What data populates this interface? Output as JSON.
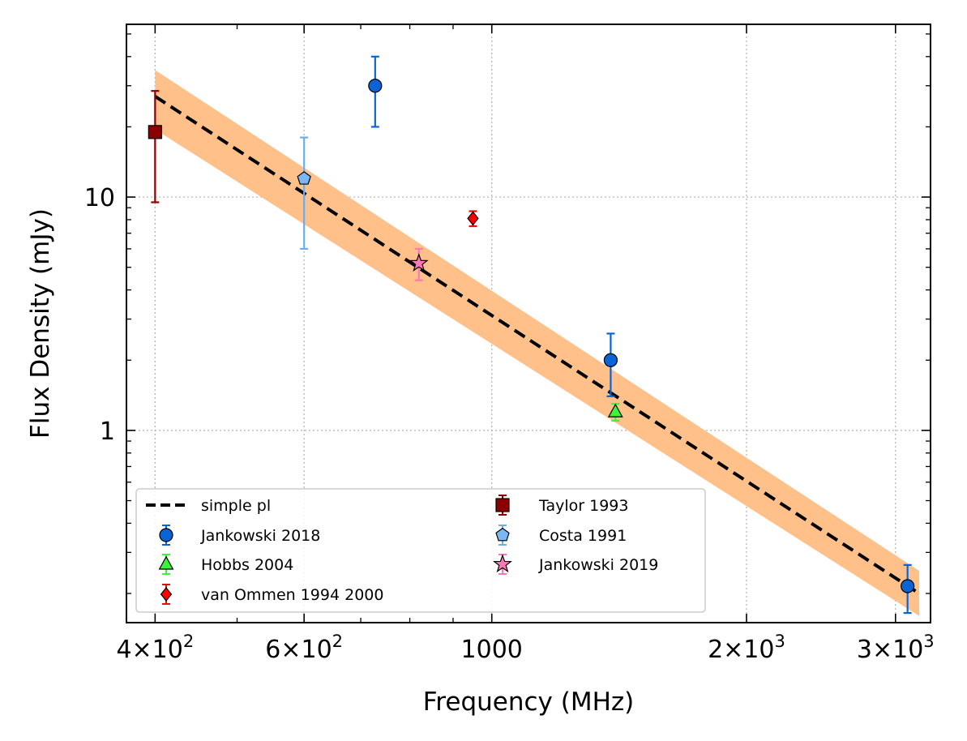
{
  "chart_data": {
    "type": "scatter",
    "title": "",
    "xlabel": "Frequency (MHz)",
    "ylabel": "Flux Density (mJy)",
    "xscale": "log",
    "yscale": "log",
    "xlim": [
      370,
      3300
    ],
    "ylim": [
      0.15,
      55
    ],
    "grid": true,
    "legend_position": "lower-left",
    "x_ticks": [
      {
        "value": 400,
        "base": "4",
        "exp": "2",
        "plain": ""
      },
      {
        "value": 600,
        "base": "6",
        "exp": "2",
        "plain": ""
      },
      {
        "value": 1000,
        "base": "",
        "exp": "",
        "plain": "1000"
      },
      {
        "value": 2000,
        "base": "2",
        "exp": "3",
        "plain": ""
      },
      {
        "value": 3000,
        "base": "3",
        "exp": "3",
        "plain": ""
      }
    ],
    "y_ticks": [
      {
        "value": 1,
        "label": "1"
      },
      {
        "value": 10,
        "label": "10"
      }
    ],
    "fit": {
      "name": "simple pl",
      "color": "#000000",
      "band_color": "#ffc08a",
      "x": [
        400,
        3200
      ],
      "y": [
        27.0,
        0.2
      ],
      "band_lower": [
        19.5,
        0.16
      ],
      "band_upper": [
        35.0,
        0.25
      ]
    },
    "series": [
      {
        "name": "Jankowski 2018",
        "marker": "circle",
        "color": "#0a64d6",
        "err_color": "#0a64d6",
        "points": [
          {
            "x": 728,
            "y": 30,
            "lo": 20,
            "hi": 40
          },
          {
            "x": 1382,
            "y": 2.0,
            "lo": 1.4,
            "hi": 2.6
          },
          {
            "x": 3100,
            "y": 0.215,
            "lo": 0.165,
            "hi": 0.265
          }
        ]
      },
      {
        "name": "Hobbs 2004",
        "marker": "triangle",
        "color": "#39f539",
        "err_color": "#39f539",
        "points": [
          {
            "x": 1400,
            "y": 1.2,
            "lo": 1.1,
            "hi": 1.3
          }
        ]
      },
      {
        "name": "van Ommen 1994 2000",
        "marker": "diamond",
        "color": "#ff0000",
        "err_color": "#e01010",
        "points": [
          {
            "x": 950,
            "y": 8.1,
            "lo": 7.5,
            "hi": 8.7
          }
        ]
      },
      {
        "name": "Taylor 1993",
        "marker": "square",
        "color": "#8b0000",
        "err_color": "#8b0000",
        "points": [
          {
            "x": 400,
            "y": 19,
            "lo": 9.5,
            "hi": 28.5
          }
        ]
      },
      {
        "name": "Costa 1991",
        "marker": "pentagon",
        "color": "#7ab8f5",
        "err_color": "#6aaef0",
        "points": [
          {
            "x": 600,
            "y": 12,
            "lo": 6,
            "hi": 18
          }
        ]
      },
      {
        "name": "Jankowski 2019",
        "marker": "star",
        "color": "#ff77b5",
        "err_color": "#ff77b5",
        "points": [
          {
            "x": 820,
            "y": 5.2,
            "lo": 4.4,
            "hi": 6.0
          }
        ]
      }
    ]
  }
}
